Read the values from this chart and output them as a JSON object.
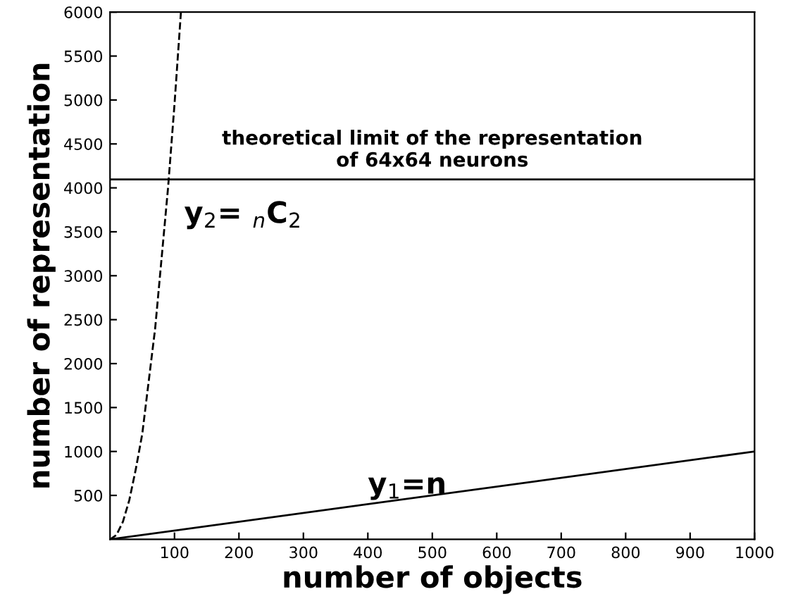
{
  "chart_data": {
    "type": "line",
    "xlabel": "number of objects",
    "ylabel": "number of representation",
    "xlim": [
      0,
      1000
    ],
    "xticks": [
      100,
      200,
      300,
      400,
      500,
      600,
      700,
      800,
      900,
      1000
    ],
    "ylim": [
      0,
      6000
    ],
    "yticks": [
      500,
      1000,
      1500,
      2000,
      2500,
      3000,
      3500,
      4000,
      4500,
      5000,
      5500,
      6000
    ],
    "grid": false,
    "legend": false,
    "marker": "none",
    "series": [
      {
        "name": "y$_{1}$=n",
        "color": "#000000",
        "line_style": "solid",
        "x": [
          0,
          1000
        ],
        "values": [
          0,
          1000
        ]
      },
      {
        "name": "y$_{2}$= $_{n}$C$_{2}$",
        "color": "#000000",
        "line_style": "dashed",
        "x": [
          0,
          10,
          20,
          30,
          40,
          50,
          60,
          70,
          80,
          90,
          100,
          110
        ],
        "values": [
          0,
          50,
          200,
          450,
          800,
          1200,
          1800,
          2400,
          3200,
          4000,
          4950,
          6000
        ]
      }
    ],
    "ref_lines": [
      {
        "axis": "y",
        "value": 4096,
        "label": "theoretical limit of the representation\nof 64x64 neurons",
        "color": "#000000",
        "line_style": "solid"
      }
    ]
  }
}
